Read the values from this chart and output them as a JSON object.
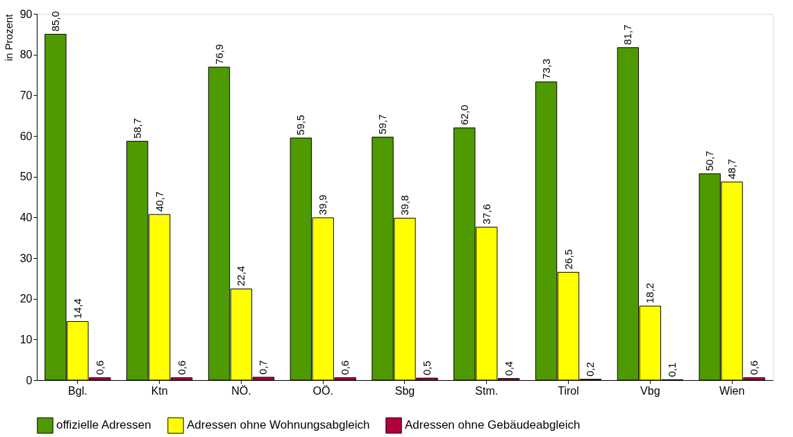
{
  "chart_data": {
    "type": "bar",
    "ylabel": "in Prozent",
    "categories": [
      "Bgl.",
      "Ktn",
      "NÖ.",
      "OÖ.",
      "Sbg",
      "Stm.",
      "Tirol",
      "Vbg",
      "Wien"
    ],
    "series": [
      {
        "name": "offizielle Adressen",
        "color": "#4e9a00",
        "values": [
          85.0,
          58.7,
          76.9,
          59.5,
          59.7,
          62.0,
          73.3,
          81.7,
          50.7
        ],
        "value_labels": [
          "85,0",
          "58,7",
          "76,9",
          "59,5",
          "59,7",
          "62,0",
          "73,3",
          "81,7",
          "50,7"
        ]
      },
      {
        "name": "Adressen ohne Wohnungsabgleich",
        "color": "#ffff00",
        "values": [
          14.4,
          40.7,
          22.4,
          39.9,
          39.8,
          37.6,
          26.5,
          18.2,
          48.7
        ],
        "value_labels": [
          "14,4",
          "40,7",
          "22,4",
          "39,9",
          "39,8",
          "37,6",
          "26,5",
          "18,2",
          "48,7"
        ]
      },
      {
        "name": "Adressen ohne Gebäudeabgleich",
        "color": "#b0003a",
        "values": [
          0.6,
          0.6,
          0.7,
          0.6,
          0.5,
          0.4,
          0.2,
          0.1,
          0.6
        ],
        "value_labels": [
          "0,6",
          "0,6",
          "0,7",
          "0,6",
          "0,5",
          "0,4",
          "0,2",
          "0,1",
          "0,6"
        ]
      }
    ],
    "ylim": [
      0,
      90
    ],
    "yticks": [
      0,
      10,
      20,
      30,
      40,
      50,
      60,
      70,
      80,
      90
    ],
    "grid": false,
    "legend": "bottom"
  }
}
